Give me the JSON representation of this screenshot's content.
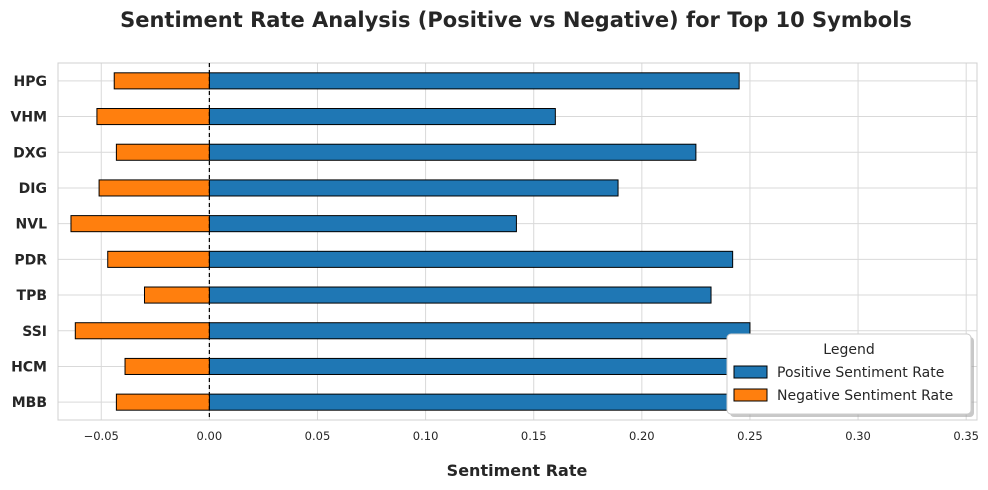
{
  "chart_data": {
    "type": "bar",
    "orientation": "horizontal",
    "title": "Sentiment Rate Analysis (Positive vs Negative) for Top 10 Symbols",
    "xlabel": "Sentiment Rate",
    "ylabel": "",
    "xlim": [
      -0.07,
      0.355
    ],
    "xticks": [
      "−0.05",
      "0.00",
      "0.05",
      "0.10",
      "0.15",
      "0.20",
      "0.25",
      "0.30",
      "0.35"
    ],
    "xtick_values": [
      -0.05,
      0.0,
      0.05,
      0.1,
      0.15,
      0.2,
      0.25,
      0.3,
      0.35
    ],
    "categories": [
      "HPG",
      "VHM",
      "DXG",
      "DIG",
      "NVL",
      "PDR",
      "TPB",
      "SSI",
      "HCM",
      "MBB"
    ],
    "series": [
      {
        "name": "Positive Sentiment Rate",
        "color": "#1f77b4",
        "values": [
          0.245,
          0.16,
          0.225,
          0.189,
          0.142,
          0.242,
          0.232,
          0.25,
          0.27,
          0.28
        ]
      },
      {
        "name": "Negative Sentiment Rate",
        "color": "#ff7f0e",
        "values": [
          -0.044,
          -0.052,
          -0.043,
          -0.051,
          -0.064,
          -0.047,
          -0.03,
          -0.062,
          -0.039,
          -0.043
        ]
      }
    ],
    "reference_line": 0.0,
    "grid": true,
    "legend": {
      "title": "Legend",
      "placement": "lower-right"
    }
  }
}
